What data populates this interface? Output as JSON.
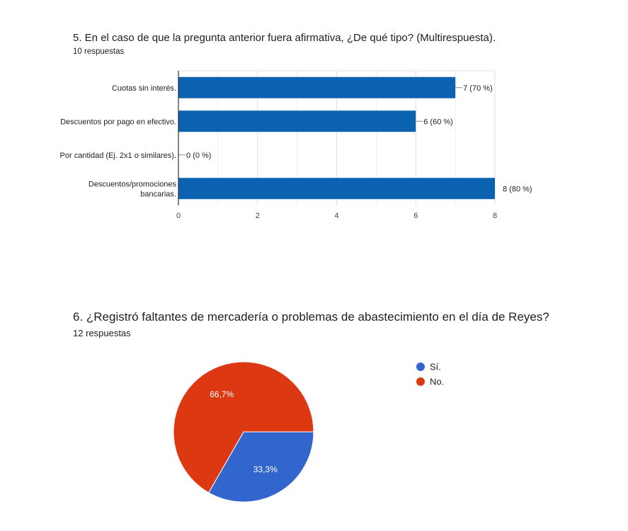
{
  "question5": {
    "title": "5. En el caso de que la pregunta anterior fuera afirmativa, ¿De qué tipo? (Multirespuesta).",
    "responses": "10 respuestas"
  },
  "question6": {
    "title": "6. ¿Registró faltantes de mercadería o problemas de abastecimiento en el día de Reyes?",
    "responses": "12 respuestas"
  },
  "colors": {
    "bar": "#0b62b0",
    "si": "#3366cc",
    "no": "#dc3912",
    "grid": "#e0e0e0",
    "axis": "#333333"
  },
  "chart_data": [
    {
      "type": "bar",
      "orientation": "horizontal",
      "categories": [
        [
          "Cuotas sin interés."
        ],
        [
          "Descuentos por pago en efectivo."
        ],
        [
          "Por cantidad (Ej. 2x1 o similares)."
        ],
        [
          "Descuentos/promociones",
          "bancarias."
        ]
      ],
      "values": [
        7,
        6,
        0,
        8
      ],
      "data_labels": [
        "7 (70 %)",
        "6 (60 %)",
        "0 (0 %)",
        "8 (80 %)"
      ],
      "xlim": [
        0,
        8
      ],
      "xticks": [
        0,
        2,
        4,
        6,
        8
      ],
      "grid": true
    },
    {
      "type": "pie",
      "labels": [
        "Sí.",
        "No."
      ],
      "values": [
        33.3,
        66.7
      ],
      "data_labels": [
        "33,3%",
        "66,7%"
      ],
      "legend_position": "right"
    }
  ]
}
